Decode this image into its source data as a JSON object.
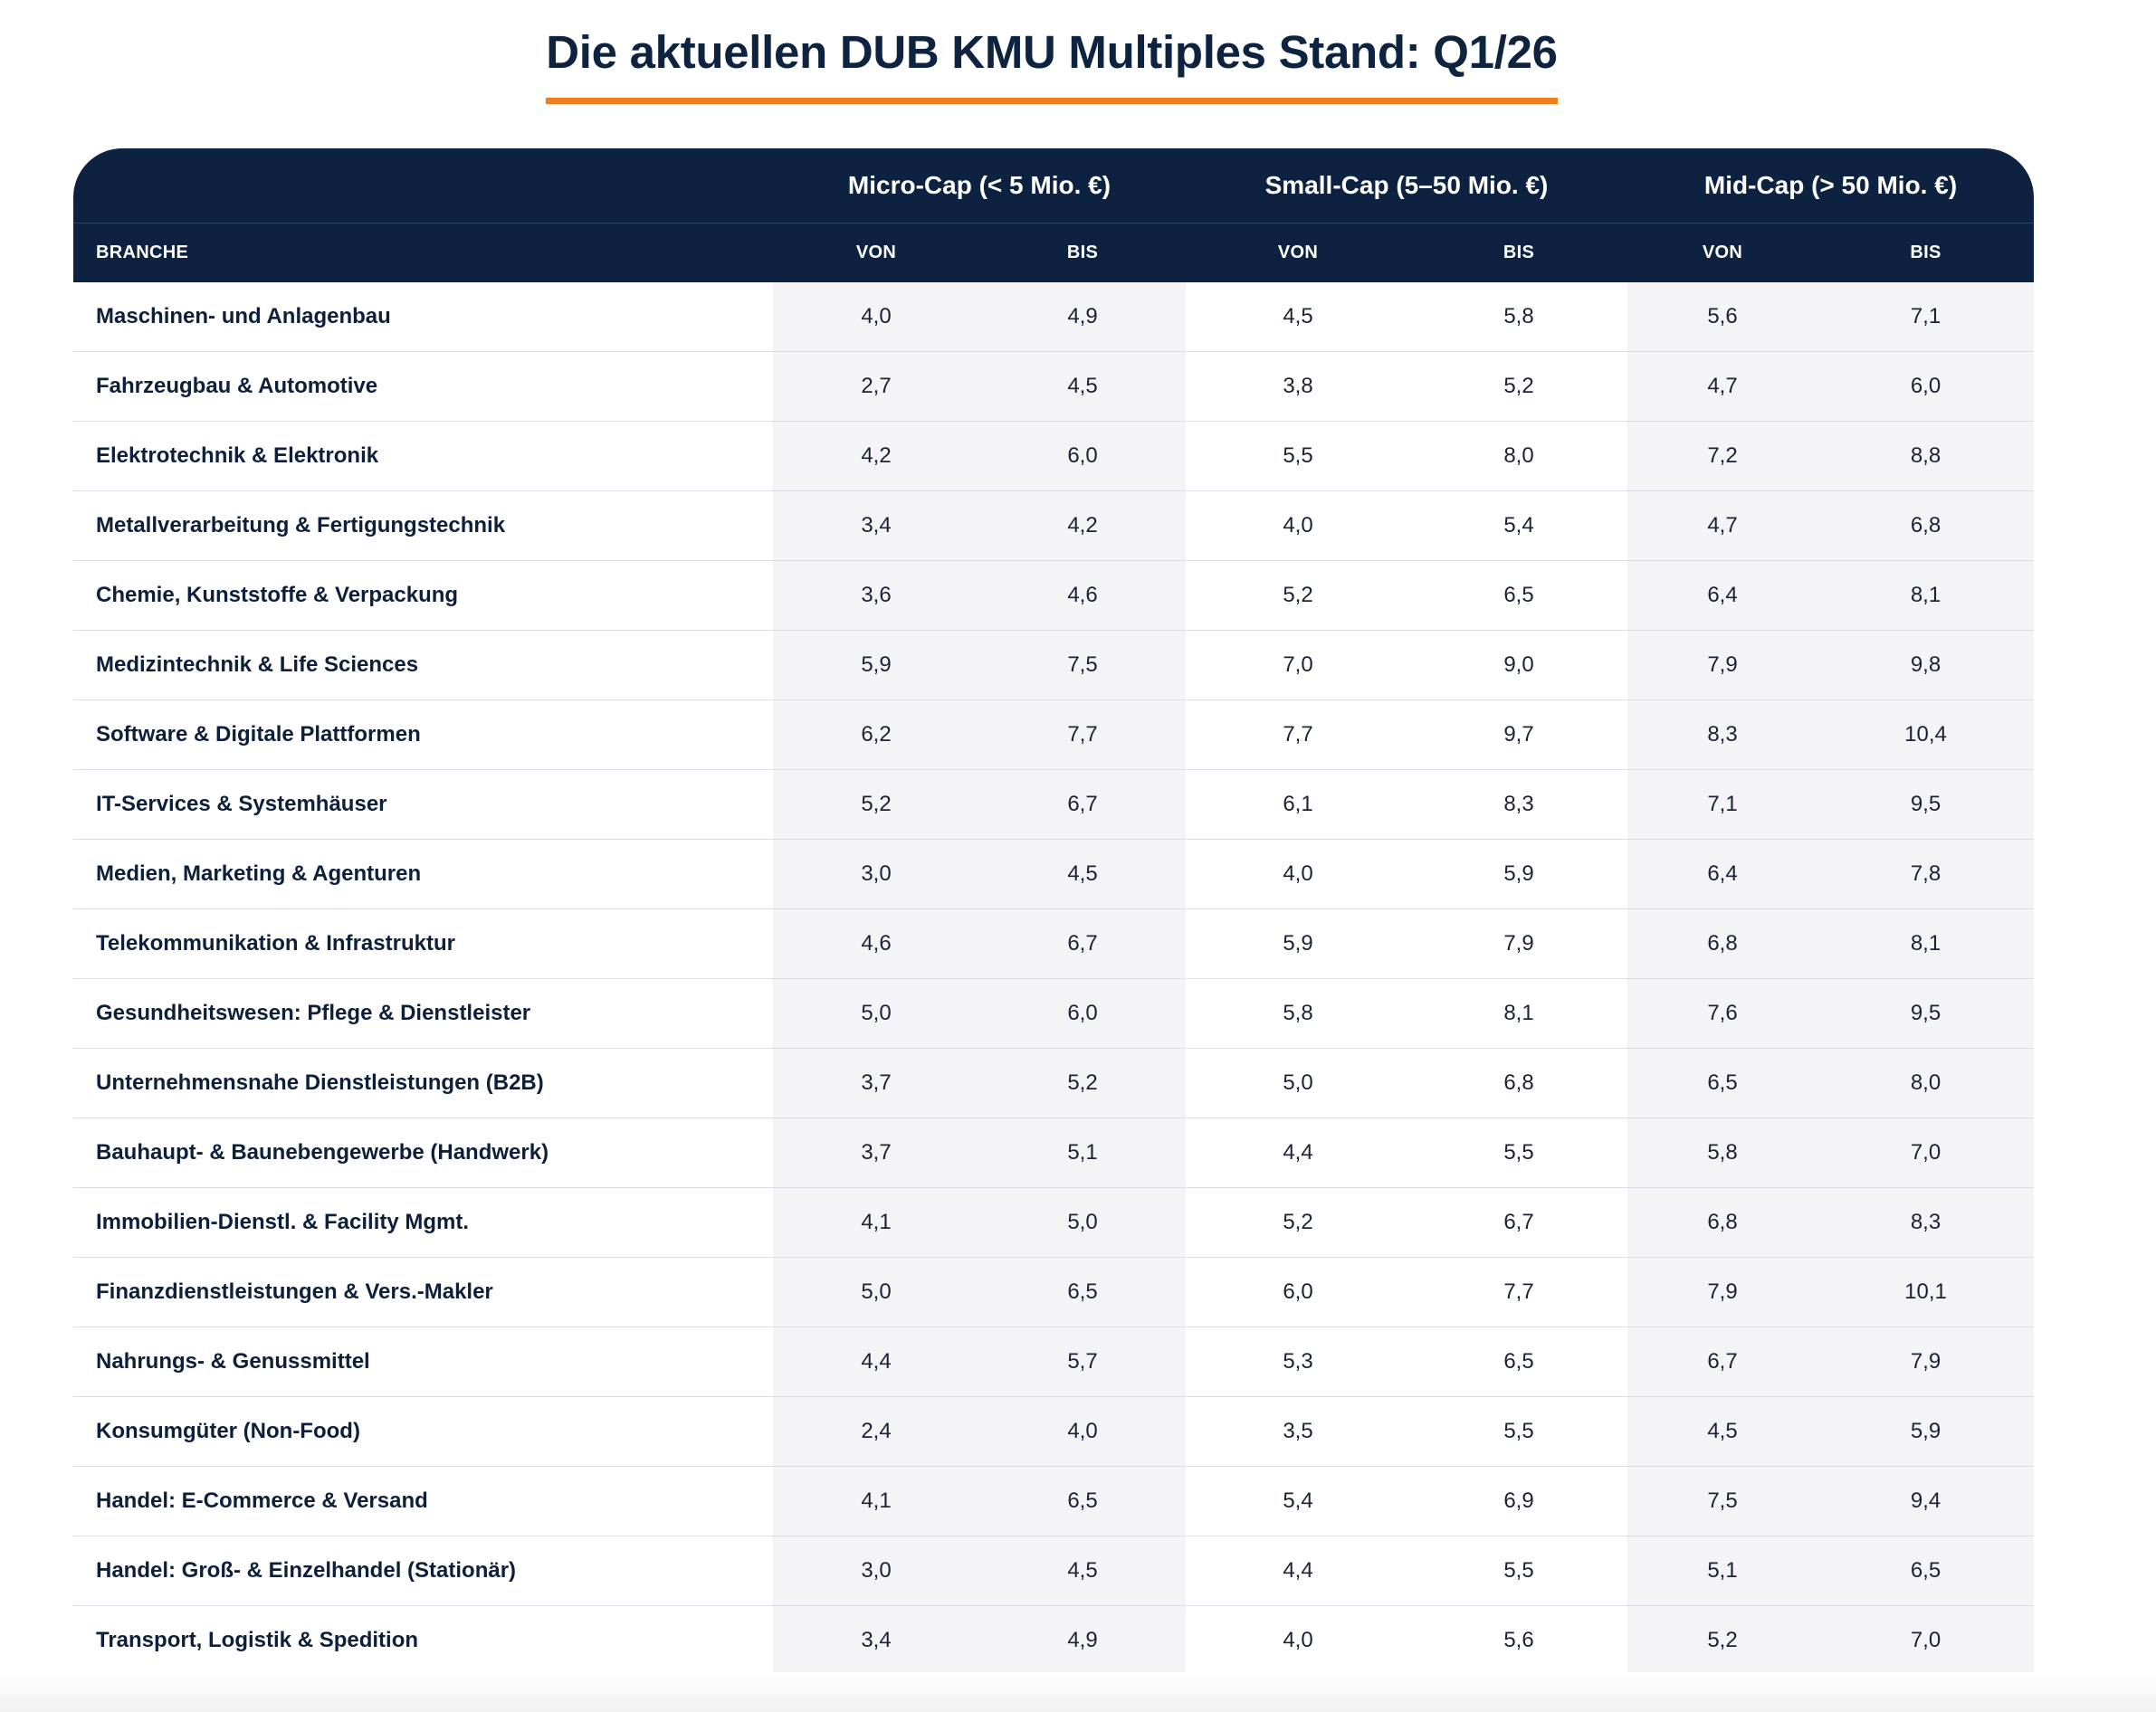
{
  "title": "Die aktuellen DUB KMU Multiples Stand: Q1/26",
  "colors": {
    "header_bg": "#0d2240",
    "accent_underline": "#f07e1e",
    "shaded_column": "#f4f4f6"
  },
  "table": {
    "groups": [
      {
        "label": "Micro-Cap (< 5 Mio. €)"
      },
      {
        "label": "Small-Cap (5–50 Mio. €)"
      },
      {
        "label": "Mid-Cap (> 50 Mio. €)"
      }
    ],
    "sub_headers": {
      "branche": "BRANCHE",
      "von": "VON",
      "bis": "BIS"
    },
    "rows": [
      {
        "branche": "Maschinen- und Anlagenbau",
        "values": [
          "4,0",
          "4,9",
          "4,5",
          "5,8",
          "5,6",
          "7,1"
        ]
      },
      {
        "branche": "Fahrzeugbau & Automotive",
        "values": [
          "2,7",
          "4,5",
          "3,8",
          "5,2",
          "4,7",
          "6,0"
        ]
      },
      {
        "branche": "Elektrotechnik & Elektronik",
        "values": [
          "4,2",
          "6,0",
          "5,5",
          "8,0",
          "7,2",
          "8,8"
        ]
      },
      {
        "branche": "Metallverarbeitung & Fertigungstechnik",
        "values": [
          "3,4",
          "4,2",
          "4,0",
          "5,4",
          "4,7",
          "6,8"
        ]
      },
      {
        "branche": "Chemie, Kunststoffe & Verpackung",
        "values": [
          "3,6",
          "4,6",
          "5,2",
          "6,5",
          "6,4",
          "8,1"
        ]
      },
      {
        "branche": "Medizintechnik & Life Sciences",
        "values": [
          "5,9",
          "7,5",
          "7,0",
          "9,0",
          "7,9",
          "9,8"
        ]
      },
      {
        "branche": "Software & Digitale Plattformen",
        "values": [
          "6,2",
          "7,7",
          "7,7",
          "9,7",
          "8,3",
          "10,4"
        ]
      },
      {
        "branche": "IT-Services & Systemhäuser",
        "values": [
          "5,2",
          "6,7",
          "6,1",
          "8,3",
          "7,1",
          "9,5"
        ]
      },
      {
        "branche": "Medien, Marketing & Agenturen",
        "values": [
          "3,0",
          "4,5",
          "4,0",
          "5,9",
          "6,4",
          "7,8"
        ]
      },
      {
        "branche": "Telekommunikation & Infrastruktur",
        "values": [
          "4,6",
          "6,7",
          "5,9",
          "7,9",
          "6,8",
          "8,1"
        ]
      },
      {
        "branche": "Gesundheitswesen: Pflege & Dienstleister",
        "values": [
          "5,0",
          "6,0",
          "5,8",
          "8,1",
          "7,6",
          "9,5"
        ]
      },
      {
        "branche": "Unternehmensnahe Dienstleistungen (B2B)",
        "values": [
          "3,7",
          "5,2",
          "5,0",
          "6,8",
          "6,5",
          "8,0"
        ]
      },
      {
        "branche": "Bauhaupt- & Baunebengewerbe (Handwerk)",
        "values": [
          "3,7",
          "5,1",
          "4,4",
          "5,5",
          "5,8",
          "7,0"
        ]
      },
      {
        "branche": "Immobilien-Dienstl. & Facility Mgmt.",
        "values": [
          "4,1",
          "5,0",
          "5,2",
          "6,7",
          "6,8",
          "8,3"
        ]
      },
      {
        "branche": "Finanzdienstleistungen & Vers.-Makler",
        "values": [
          "5,0",
          "6,5",
          "6,0",
          "7,7",
          "7,9",
          "10,1"
        ]
      },
      {
        "branche": "Nahrungs- & Genussmittel",
        "values": [
          "4,4",
          "5,7",
          "5,3",
          "6,5",
          "6,7",
          "7,9"
        ]
      },
      {
        "branche": "Konsumgüter (Non-Food)",
        "values": [
          "2,4",
          "4,0",
          "3,5",
          "5,5",
          "4,5",
          "5,9"
        ]
      },
      {
        "branche": "Handel: E-Commerce & Versand",
        "values": [
          "4,1",
          "6,5",
          "5,4",
          "6,9",
          "7,5",
          "9,4"
        ]
      },
      {
        "branche": "Handel: Groß- & Einzelhandel (Stationär)",
        "values": [
          "3,0",
          "4,5",
          "4,4",
          "5,5",
          "5,1",
          "6,5"
        ]
      },
      {
        "branche": "Transport, Logistik & Spedition",
        "values": [
          "3,4",
          "4,9",
          "4,0",
          "5,6",
          "5,2",
          "7,0"
        ]
      }
    ]
  }
}
